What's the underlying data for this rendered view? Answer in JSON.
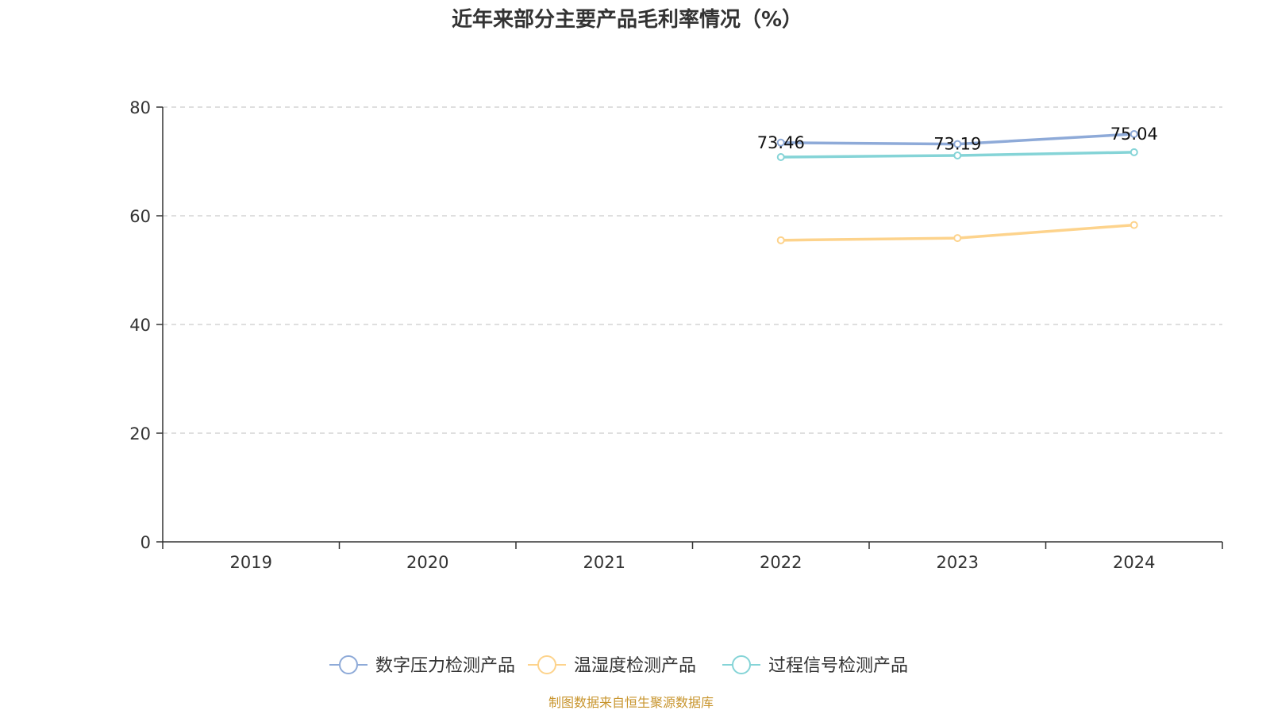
{
  "source_note": "制图数据来自恒生聚源数据库",
  "colors": {
    "source": "#c8952e",
    "axis": "#333333",
    "grid": "#cccccc"
  },
  "chart_data": {
    "type": "line",
    "title": "近年来部分主要产品毛利率情况（%）",
    "x": [
      "2019",
      "2020",
      "2021",
      "2022",
      "2023",
      "2024"
    ],
    "ylim": [
      0,
      80
    ],
    "yticks": [
      0,
      20,
      40,
      60,
      80
    ],
    "grid": true,
    "legend_position": "bottom",
    "series": [
      {
        "name": "数字压力检测产品",
        "color": "#8eaad8",
        "values": [
          null,
          null,
          null,
          73.46,
          73.19,
          75.04
        ],
        "labels": [
          null,
          null,
          null,
          "73.46",
          "73.19",
          "75.04"
        ]
      },
      {
        "name": "温湿度检测产品",
        "color": "#fdd38c",
        "values": [
          null,
          null,
          null,
          55.5,
          55.9,
          58.3
        ],
        "labels": []
      },
      {
        "name": "过程信号检测产品",
        "color": "#85d4d7",
        "values": [
          null,
          null,
          null,
          70.8,
          71.1,
          71.7
        ],
        "labels": []
      }
    ]
  }
}
